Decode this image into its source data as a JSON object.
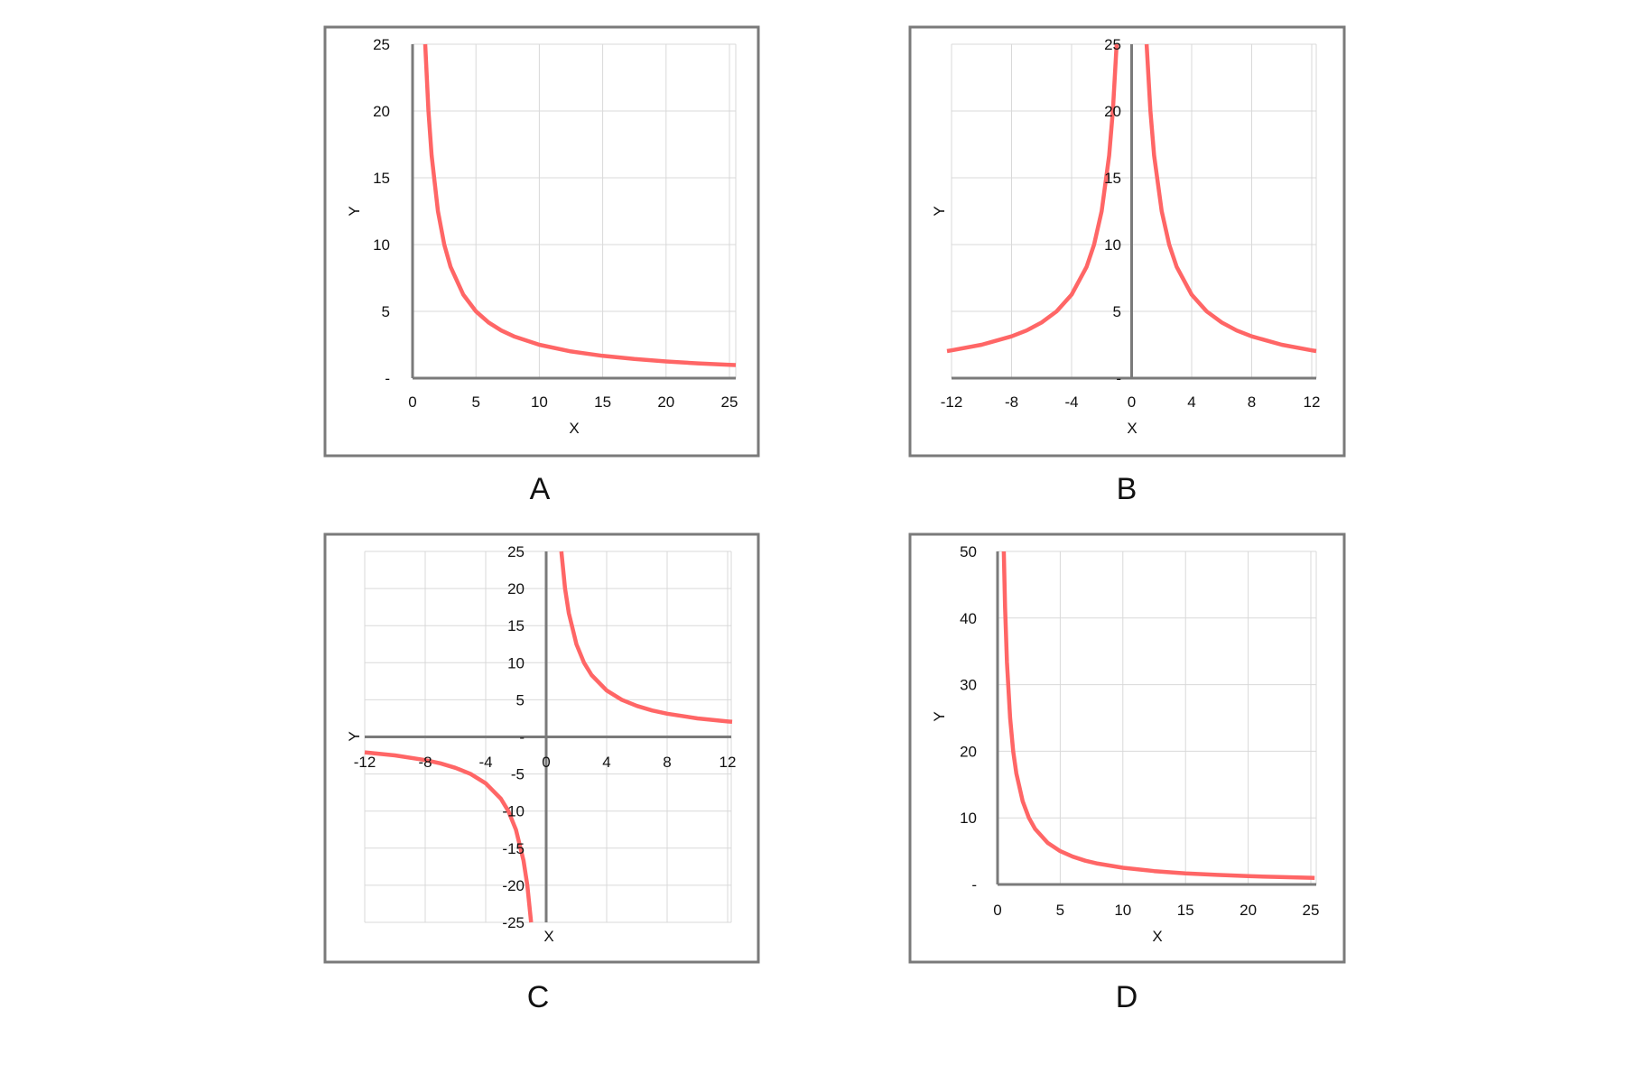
{
  "colors": {
    "curve": "#ff6666",
    "axis": "#7a7a7a",
    "grid": "#d9d9d9",
    "frame": "#7a7a7a"
  },
  "chart_data": [
    {
      "panel": "A",
      "type": "line",
      "xlabel": "X",
      "ylabel": "Y",
      "xlim": [
        0,
        25
      ],
      "ylim": [
        0,
        25
      ],
      "grid": true,
      "xticks": [
        "0",
        "5",
        "10",
        "15",
        "20",
        "25"
      ],
      "xtick_values": [
        0,
        5,
        10,
        15,
        20,
        25
      ],
      "yticks": [
        "-",
        "5",
        "10",
        "15",
        "20",
        "25"
      ],
      "ytick_values": [
        0,
        5,
        10,
        15,
        20,
        25
      ],
      "series": [
        {
          "x": [
            1,
            1.25,
            1.5,
            2,
            2.5,
            3,
            4,
            5,
            6,
            7,
            8,
            10,
            12.5,
            15,
            17.5,
            20,
            22.5,
            25,
            25.5
          ],
          "y": [
            25,
            20,
            16.67,
            12.5,
            10,
            8.33,
            6.25,
            5,
            4.17,
            3.57,
            3.13,
            2.5,
            2,
            1.67,
            1.43,
            1.25,
            1.11,
            1,
            0.98
          ]
        }
      ]
    },
    {
      "panel": "B",
      "type": "line",
      "xlabel": "X",
      "ylabel": "Y",
      "xlim": [
        -12,
        12
      ],
      "ylim": [
        0,
        25
      ],
      "grid": true,
      "xticks": [
        "-12",
        "-8",
        "-4",
        "0",
        "4",
        "8",
        "12"
      ],
      "xtick_values": [
        -12,
        -8,
        -4,
        0,
        4,
        8,
        12
      ],
      "yticks": [
        "-",
        "5",
        "10",
        "15",
        "20",
        "25"
      ],
      "ytick_values": [
        0,
        5,
        10,
        15,
        20,
        25
      ],
      "series": [
        {
          "x": [
            -12.3,
            -12,
            -10,
            -8,
            -7,
            -6,
            -5,
            -4,
            -3,
            -2.5,
            -2,
            -1.5,
            -1.25,
            -1
          ],
          "y": [
            2.03,
            2.08,
            2.5,
            3.13,
            3.57,
            4.17,
            5,
            6.25,
            8.33,
            10,
            12.5,
            16.67,
            20,
            25
          ]
        },
        {
          "x": [
            1,
            1.25,
            1.5,
            2,
            2.5,
            3,
            4,
            5,
            6,
            7,
            8,
            10,
            12,
            12.3
          ],
          "y": [
            25,
            20,
            16.67,
            12.5,
            10,
            8.33,
            6.25,
            5,
            4.17,
            3.57,
            3.13,
            2.5,
            2.08,
            2.03
          ]
        }
      ]
    },
    {
      "panel": "C",
      "type": "line",
      "xlabel": "X",
      "ylabel": "Y",
      "xlim": [
        -12,
        12
      ],
      "ylim": [
        -25,
        25
      ],
      "grid": true,
      "xticks": [
        "-12",
        "-8",
        "-4",
        "0",
        "4",
        "8",
        "12"
      ],
      "xtick_values": [
        -12,
        -8,
        -4,
        0,
        4,
        8,
        12
      ],
      "yticks": [
        "-25",
        "-20",
        "-15",
        "-10",
        "-5",
        "-",
        "5",
        "10",
        "15",
        "20",
        "25"
      ],
      "ytick_values": [
        -25,
        -20,
        -15,
        -10,
        -5,
        0,
        5,
        10,
        15,
        20,
        25
      ],
      "series": [
        {
          "x": [
            -12,
            -10,
            -8,
            -7,
            -6,
            -5,
            -4,
            -3,
            -2.5,
            -2,
            -1.5,
            -1.25,
            -1
          ],
          "y": [
            -2.08,
            -2.5,
            -3.13,
            -3.57,
            -4.17,
            -5,
            -6.25,
            -8.33,
            -10,
            -12.5,
            -16.67,
            -20,
            -25
          ]
        },
        {
          "x": [
            1,
            1.25,
            1.5,
            2,
            2.5,
            3,
            4,
            5,
            6,
            7,
            8,
            10,
            12,
            12.3
          ],
          "y": [
            25,
            20,
            16.67,
            12.5,
            10,
            8.33,
            6.25,
            5,
            4.17,
            3.57,
            3.13,
            2.5,
            2.08,
            2.03
          ]
        }
      ]
    },
    {
      "panel": "D",
      "type": "line",
      "xlabel": "X",
      "ylabel": "Y",
      "xlim": [
        0,
        25
      ],
      "ylim": [
        0,
        50
      ],
      "grid": true,
      "xticks": [
        "0",
        "5",
        "10",
        "15",
        "20",
        "25"
      ],
      "xtick_values": [
        0,
        5,
        10,
        15,
        20,
        25
      ],
      "yticks": [
        "-",
        "10",
        "20",
        "30",
        "40",
        "50"
      ],
      "ytick_values": [
        0,
        10,
        20,
        30,
        40,
        50
      ],
      "series": [
        {
          "x": [
            0.5,
            0.6,
            0.75,
            1,
            1.25,
            1.5,
            2,
            2.5,
            3,
            4,
            5,
            6,
            7,
            8,
            10,
            12.5,
            15,
            17.5,
            20,
            22.5,
            25,
            25.3
          ],
          "y": [
            50,
            41.67,
            33.33,
            25,
            20,
            16.67,
            12.5,
            10,
            8.33,
            6.25,
            5,
            4.17,
            3.57,
            3.13,
            2.5,
            2,
            1.67,
            1.43,
            1.25,
            1.11,
            1,
            0.99
          ]
        }
      ]
    }
  ]
}
